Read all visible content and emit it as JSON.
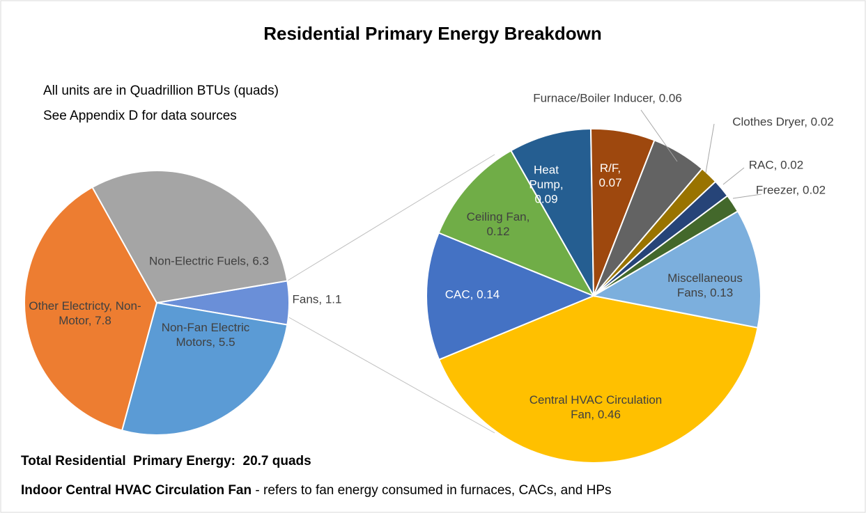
{
  "title": "Residential Primary Energy Breakdown",
  "notes": [
    "All units are in Quadrillion BTUs (quads)",
    "See Appendix D for data sources"
  ],
  "footer": {
    "total": "Total Residential  Primary Energy:  20.7 quads",
    "term": "Indoor Central HVAC Circulation Fan",
    "definition": " - refers to fan energy consumed in furnaces, CACs, and HPs"
  },
  "chart_data": [
    {
      "type": "pie",
      "categories": [
        "Fans,",
        "Non-Fan Electric Motors,",
        "Other Electricty, Non-Motor,",
        "Non-Electric Fuels,"
      ],
      "values": [
        1.1,
        5.5,
        7.8,
        6.3
      ],
      "colors": [
        "#6a8fd8",
        "#5b9bd5",
        "#ed7d31",
        "#a5a5a5"
      ]
    },
    {
      "type": "pie",
      "categories": [
        "Central HVAC Circulation Fan,",
        "CAC,",
        "Ceiling Fan,",
        "Heat Pump,",
        "R/F,",
        "Furnace/Boiler Inducer,",
        "Clothes Dryer,",
        "RAC,",
        "Freezer,",
        "Miscellaneous Fans,"
      ],
      "values": [
        0.46,
        0.14,
        0.12,
        0.09,
        0.07,
        0.06,
        0.02,
        0.02,
        0.02,
        0.13
      ],
      "colors": [
        "#ffc000",
        "#4472c4",
        "#70ad47",
        "#255e91",
        "#9e480e",
        "#636363",
        "#997300",
        "#264478",
        "#43682b",
        "#7cafdd"
      ]
    }
  ]
}
